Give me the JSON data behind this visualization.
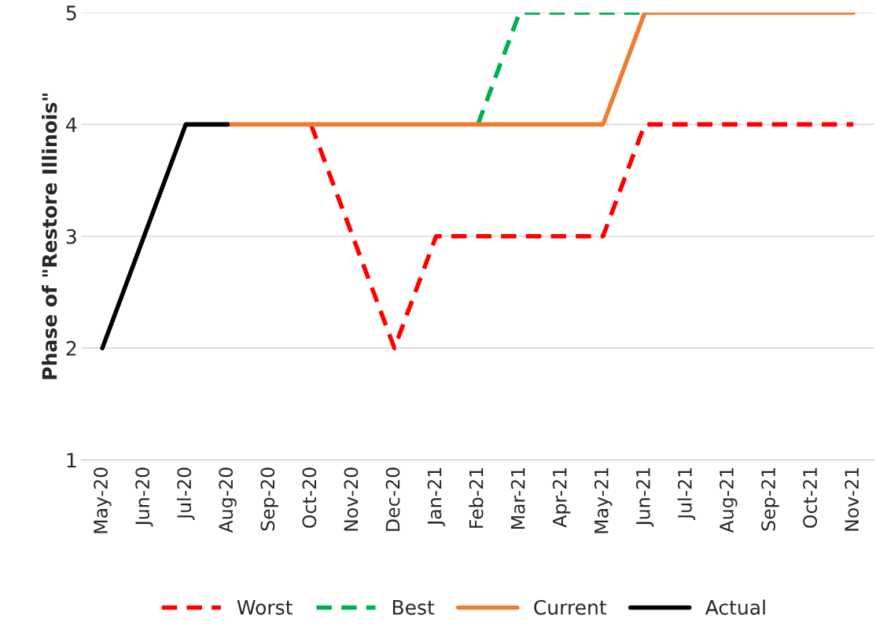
{
  "chart_data": {
    "type": "line",
    "ylabel": "Phase of \"Restore Illinois\"",
    "categories": [
      "May-20",
      "Jun-20",
      "Jul-20",
      "Aug-20",
      "Sep-20",
      "Oct-20",
      "Nov-20",
      "Dec-20",
      "Jan-21",
      "Feb-21",
      "Mar-21",
      "Apr-21",
      "May-21",
      "Jun-21",
      "Jul-21",
      "Aug-21",
      "Sep-21",
      "Oct-21",
      "Nov-21"
    ],
    "series": [
      {
        "name": "Worst",
        "color": "#ff0000",
        "line_style": "dashed",
        "values": [
          null,
          null,
          null,
          null,
          null,
          4,
          3,
          2,
          3,
          3,
          3,
          3,
          3,
          4,
          4,
          4,
          4,
          4,
          4
        ]
      },
      {
        "name": "Best",
        "color": "#00b050",
        "line_style": "dashed",
        "values": [
          null,
          null,
          null,
          null,
          null,
          null,
          null,
          null,
          null,
          4,
          5,
          5,
          5,
          5,
          null,
          null,
          null,
          null,
          null
        ]
      },
      {
        "name": "Current",
        "color": "#ed7d31",
        "line_style": "solid",
        "values": [
          null,
          null,
          null,
          4,
          4,
          4,
          4,
          4,
          4,
          4,
          4,
          4,
          4,
          5,
          5,
          5,
          5,
          5,
          5
        ]
      },
      {
        "name": "Actual",
        "color": "#000000",
        "line_style": "solid",
        "values": [
          2,
          3,
          4,
          4,
          null,
          null,
          null,
          null,
          null,
          null,
          null,
          null,
          null,
          null,
          null,
          null,
          null,
          null,
          null
        ]
      }
    ],
    "ylim": [
      1,
      5
    ],
    "yticks": [
      1,
      2,
      3,
      4,
      5
    ],
    "grid": "y",
    "legend": "bottom",
    "marker": "none"
  }
}
